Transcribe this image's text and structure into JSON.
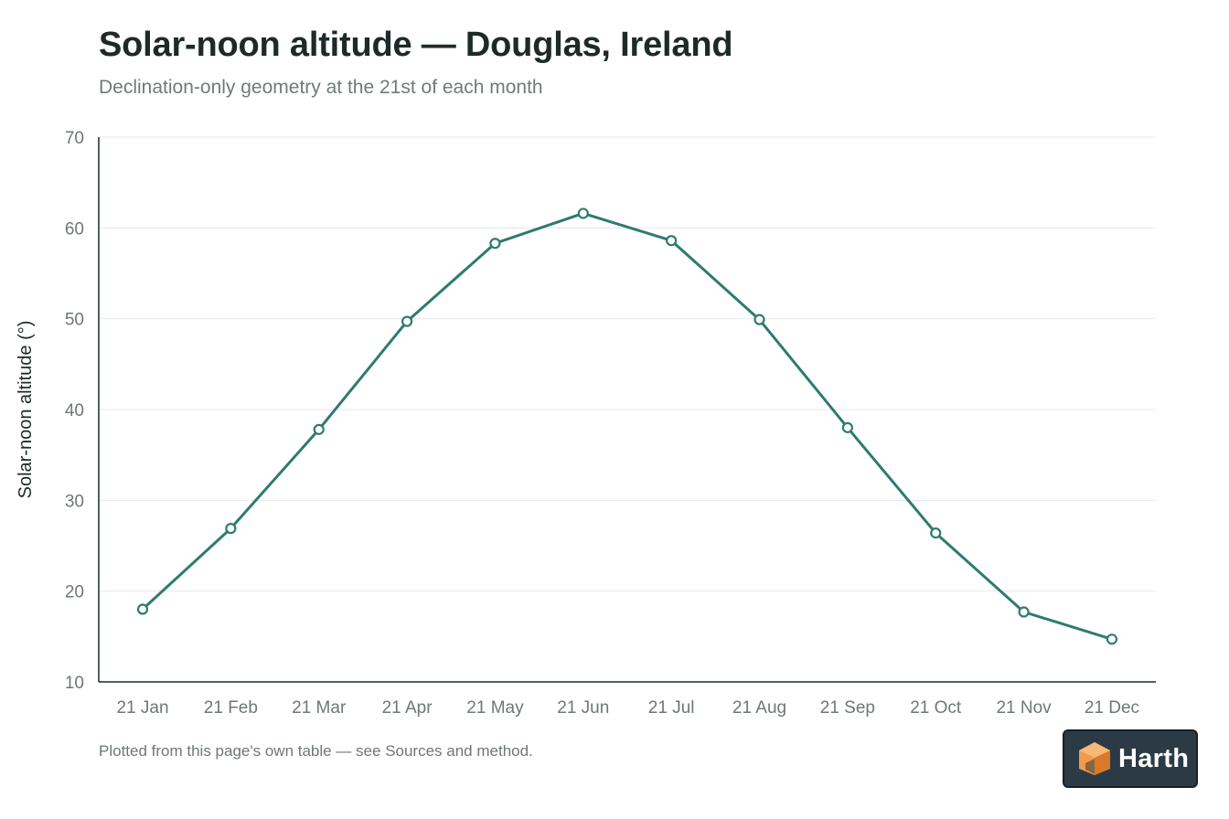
{
  "header": {
    "title": "Solar-noon altitude — Douglas, Ireland",
    "subtitle": "Declination-only geometry at the 21st of each month"
  },
  "footer": {
    "note": "Plotted from this page's own table — see Sources and method.",
    "brand": "Harth"
  },
  "colors": {
    "line": "#2e7b6e",
    "axis": "#1e2a28",
    "grid": "#e6e8e7",
    "tick_text": "#6f7775",
    "badge_bg": "#2b3a45",
    "logo_orange": "#f29a4a"
  },
  "icons": {
    "brand_logo": "harth-logo-icon"
  },
  "chart_data": {
    "type": "line",
    "title": "Solar-noon altitude — Douglas, Ireland",
    "subtitle": "Declination-only geometry at the 21st of each month",
    "xlabel": "",
    "ylabel": "Solar-noon altitude (°)",
    "categories": [
      "21 Jan",
      "21 Feb",
      "21 Mar",
      "21 Apr",
      "21 May",
      "21 Jun",
      "21 Jul",
      "21 Aug",
      "21 Sep",
      "21 Oct",
      "21 Nov",
      "21 Dec"
    ],
    "series": [
      {
        "values": [
          18.0,
          26.9,
          37.8,
          49.7,
          58.3,
          61.6,
          58.6,
          49.9,
          38.0,
          26.4,
          17.7,
          14.7
        ]
      }
    ],
    "ylim": [
      10,
      70
    ],
    "yticks": [
      10,
      20,
      30,
      40,
      50,
      60,
      70
    ],
    "grid": true,
    "legend": "none"
  }
}
